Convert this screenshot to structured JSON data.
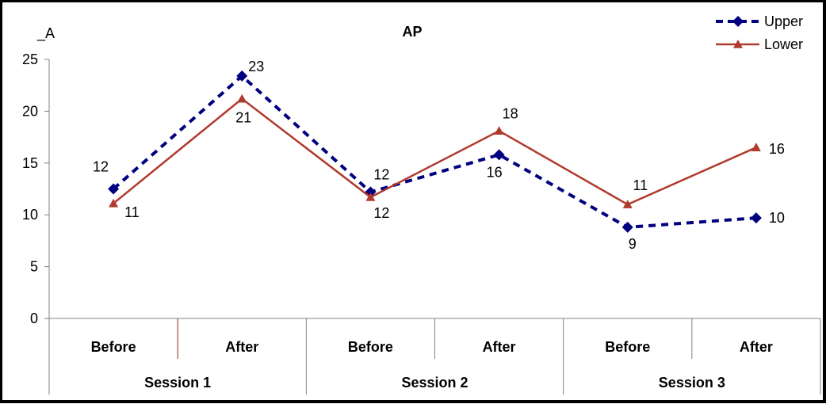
{
  "chart_data": {
    "type": "line",
    "title": "AP",
    "ylabel": "_A",
    "xlabel": "",
    "ylim": [
      0,
      25
    ],
    "yticks": [
      0,
      5,
      10,
      15,
      20,
      25
    ],
    "categories": [
      "Before",
      "After",
      "Before",
      "After",
      "Before",
      "After"
    ],
    "groups": [
      {
        "label": "Session 1",
        "span": 2
      },
      {
        "label": "Session 2",
        "span": 2
      },
      {
        "label": "Session 3",
        "span": 2
      }
    ],
    "series": [
      {
        "name": "Upper",
        "color": "#000080",
        "line_style": "dashed",
        "marker": "diamond",
        "values": [
          12.5,
          23.4,
          12.2,
          15.8,
          8.8,
          9.7
        ],
        "labels": [
          "12",
          "23",
          "12",
          "16",
          "9",
          "10"
        ]
      },
      {
        "name": "Lower",
        "color": "#b03a2e",
        "line_style": "solid",
        "marker": "triangle",
        "values": [
          11.1,
          21.2,
          11.7,
          18.1,
          11.0,
          16.5
        ],
        "labels": [
          "11",
          "21",
          "12",
          "18",
          "11",
          "16"
        ]
      }
    ],
    "legend_position": "top-right",
    "grid": false
  }
}
